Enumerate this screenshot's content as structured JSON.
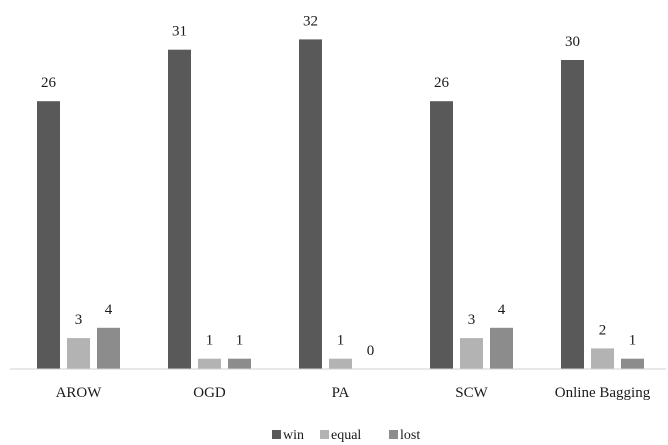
{
  "chart_data": {
    "type": "bar",
    "title": "",
    "xlabel": "",
    "ylabel": "",
    "categories": [
      "AROW",
      "OGD",
      "PA",
      "SCW",
      "Online Bagging"
    ],
    "series": [
      {
        "name": "win",
        "values": [
          26,
          31,
          32,
          26,
          30
        ],
        "color": "#595959"
      },
      {
        "name": "equal",
        "values": [
          3,
          1,
          1,
          3,
          2
        ],
        "color": "#b3b3b3"
      },
      {
        "name": "lost",
        "values": [
          4,
          1,
          0,
          4,
          1
        ],
        "color": "#8c8c8c"
      }
    ],
    "ylim": [
      0,
      32
    ],
    "grid": false,
    "data_labels": true,
    "legend_position": "bottom"
  }
}
